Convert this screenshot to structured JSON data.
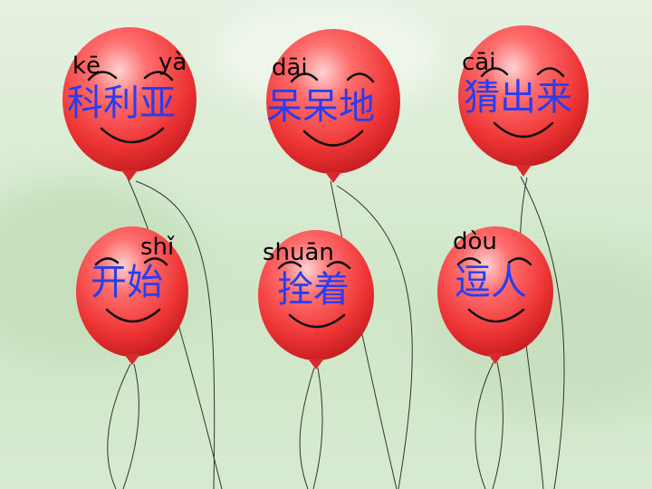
{
  "balloons": [
    {
      "id": "keliya",
      "pinyin": [
        "kē",
        "yà"
      ],
      "text": "科利亚"
    },
    {
      "id": "daidai",
      "pinyin": [
        "dāi"
      ],
      "text": "呆呆地"
    },
    {
      "id": "caichulai",
      "pinyin": [
        "cāi"
      ],
      "text": "猜出来"
    },
    {
      "id": "kaishi",
      "pinyin": [
        "shǐ"
      ],
      "text": "开始"
    },
    {
      "id": "shuanzhe",
      "pinyin": [
        "shuān"
      ],
      "text": "拴着"
    },
    {
      "id": "douren",
      "pinyin": [
        "dòu"
      ],
      "text": "逗人"
    }
  ],
  "colors": {
    "balloon": "#f0383a",
    "balloon_highlight": "#ffb3b3",
    "hanzi": "#2a3cf0",
    "pinyin": "#000000",
    "background": "#d9ecd3"
  }
}
